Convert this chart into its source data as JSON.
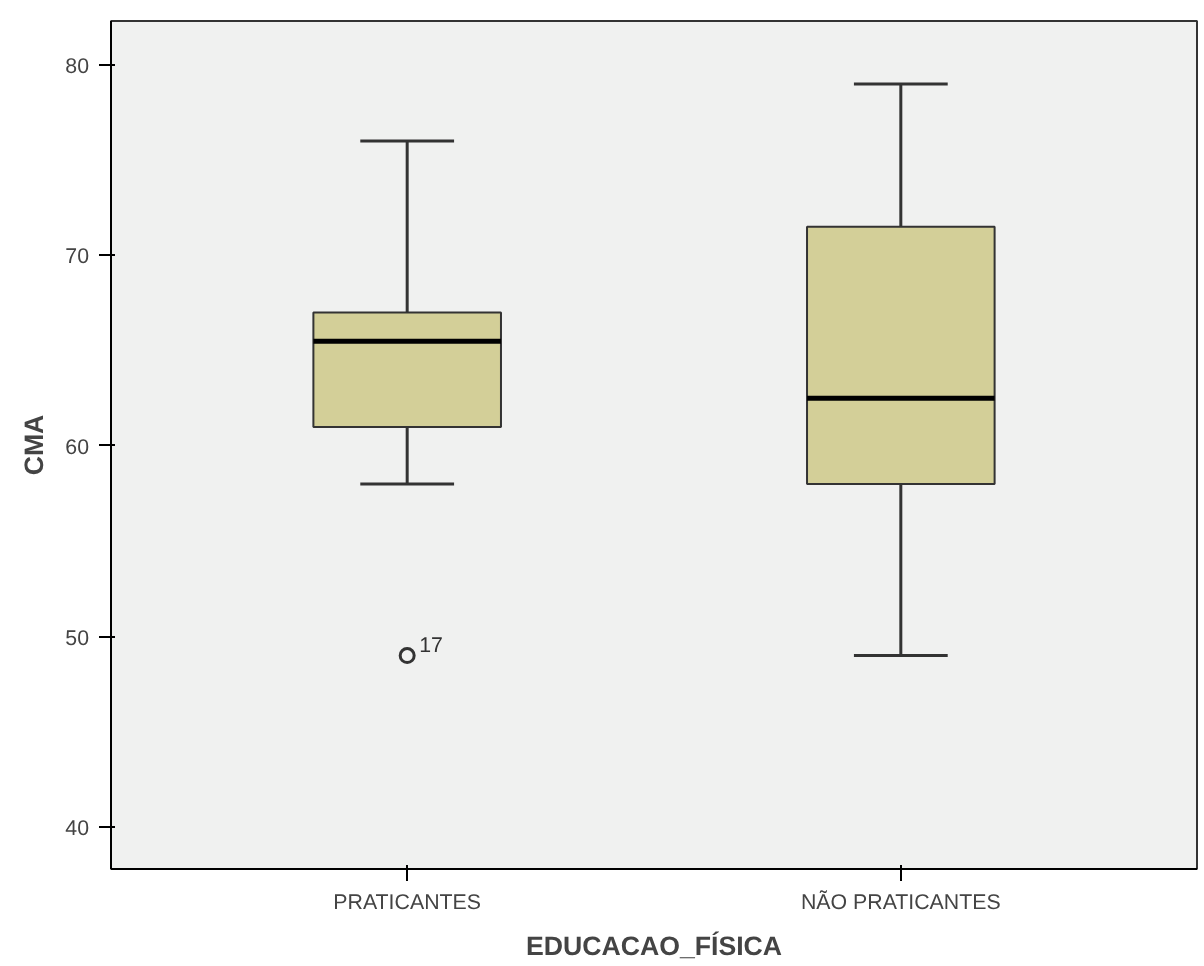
{
  "chart_data": {
    "type": "box",
    "xlabel": "EDUCACAO_FÍSICA",
    "ylabel": "CMA",
    "categories": [
      "PRATICANTES",
      "NÃO PRATICANTES"
    ],
    "boxes": [
      {
        "low": 58,
        "q1": 61,
        "median": 65.5,
        "q3": 67,
        "high": 76,
        "outliers": [
          49
        ]
      },
      {
        "low": 49,
        "q1": 58,
        "median": 62.5,
        "q3": 71.5,
        "high": 79
      }
    ],
    "color": "#d3cf98",
    "ylim": [
      37.8,
      82.3
    ],
    "yticks": [
      40,
      50,
      60,
      70,
      80
    ],
    "annotations": [
      "17"
    ],
    "grid": false
  }
}
